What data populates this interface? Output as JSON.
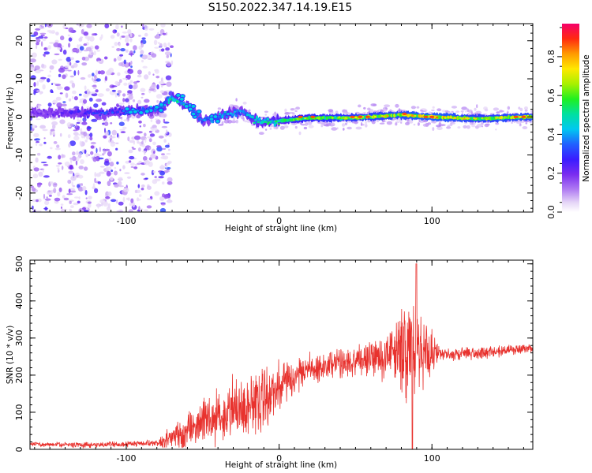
{
  "title": "S150.2022.347.14.19.E15",
  "chart_data": [
    {
      "type": "heatmap",
      "xlabel": "Height of straight line (km)",
      "ylabel": "Frequency (Hz)",
      "xlim": [
        -163,
        166
      ],
      "ylim": [
        -25,
        24.5
      ],
      "xticks": [
        -100,
        0,
        100
      ],
      "xtick_labels": [
        "-100",
        "0",
        "100"
      ],
      "yticks": [
        -20,
        -10,
        0,
        10,
        20
      ],
      "ytick_labels": [
        "-20",
        "-10",
        "0",
        "10",
        "20"
      ],
      "colorbar": {
        "label": "Normalized spectral amplitude",
        "range": [
          0,
          0.97
        ],
        "ticks": [
          0,
          0.2,
          0.4,
          0.6,
          0.8
        ],
        "tick_labels": [
          "0.0",
          "0.2",
          "0.4",
          "0.6",
          "0.8"
        ],
        "colormap": "rainbow (white-lavender-purple-blue-cyan-green-yellow-orange-red-magenta)"
      },
      "description_points": {
        "noise_region_x": [
          -163,
          -80
        ],
        "band_center_freq": 0,
        "band": [
          {
            "x": -150,
            "f": 1.0,
            "a": 0.2
          },
          {
            "x": -120,
            "f": 1.0,
            "a": 0.3
          },
          {
            "x": -95,
            "f": 1.5,
            "a": 0.35
          },
          {
            "x": -80,
            "f": 2.0,
            "a": 0.4
          },
          {
            "x": -70,
            "f": 5.0,
            "a": 0.5
          },
          {
            "x": -60,
            "f": 3.0,
            "a": 0.45
          },
          {
            "x": -50,
            "f": -1.0,
            "a": 0.35
          },
          {
            "x": -35,
            "f": 0.5,
            "a": 0.45
          },
          {
            "x": -25,
            "f": 1.5,
            "a": 0.4
          },
          {
            "x": -12,
            "f": -1.5,
            "a": 0.5
          },
          {
            "x": 0,
            "f": -1.0,
            "a": 0.55
          },
          {
            "x": 20,
            "f": -0.3,
            "a": 0.65
          },
          {
            "x": 50,
            "f": -0.2,
            "a": 0.7
          },
          {
            "x": 80,
            "f": 0.5,
            "a": 0.75
          },
          {
            "x": 100,
            "f": 0.0,
            "a": 0.8
          },
          {
            "x": 130,
            "f": -0.5,
            "a": 0.7
          },
          {
            "x": 160,
            "f": 0.0,
            "a": 0.75
          }
        ]
      }
    },
    {
      "type": "line",
      "xlabel": "Height of straight line (km)",
      "ylabel": "SNR (10 * v/v)",
      "xlim": [
        -163,
        166
      ],
      "ylim": [
        0,
        510
      ],
      "xticks": [
        -100,
        0,
        100
      ],
      "xtick_labels": [
        "-100",
        "0",
        "100"
      ],
      "yticks": [
        0,
        100,
        200,
        300,
        400,
        500
      ],
      "ytick_labels": [
        "0",
        "100",
        "200",
        "300",
        "400",
        "500"
      ],
      "color": "#e8322e",
      "series": [
        {
          "x": [
            -163,
            -140,
            -120,
            -100,
            -80,
            -70,
            -60,
            -50,
            -40,
            -30,
            -20,
            -10,
            0,
            10,
            20,
            30,
            40,
            50,
            60,
            70,
            80,
            88,
            90,
            92,
            100,
            110,
            120,
            130,
            140,
            150,
            160,
            166
          ],
          "y": [
            15,
            12,
            12,
            14,
            18,
            30,
            50,
            70,
            90,
            110,
            120,
            140,
            165,
            190,
            215,
            225,
            235,
            240,
            248,
            255,
            262,
            270,
            500,
            265,
            258,
            255,
            258,
            260,
            263,
            267,
            270,
            272
          ]
        }
      ],
      "noise_amplitude": [
        {
          "x": -163,
          "amp": 8
        },
        {
          "x": -80,
          "amp": 10
        },
        {
          "x": -70,
          "amp": 40
        },
        {
          "x": -50,
          "amp": 70
        },
        {
          "x": -30,
          "amp": 110
        },
        {
          "x": -10,
          "amp": 110
        },
        {
          "x": 10,
          "amp": 60
        },
        {
          "x": 30,
          "amp": 40
        },
        {
          "x": 60,
          "amp": 60
        },
        {
          "x": 75,
          "amp": 100
        },
        {
          "x": 85,
          "amp": 160
        },
        {
          "x": 95,
          "amp": 120
        },
        {
          "x": 105,
          "amp": 25
        },
        {
          "x": 166,
          "amp": 15
        }
      ]
    }
  ]
}
